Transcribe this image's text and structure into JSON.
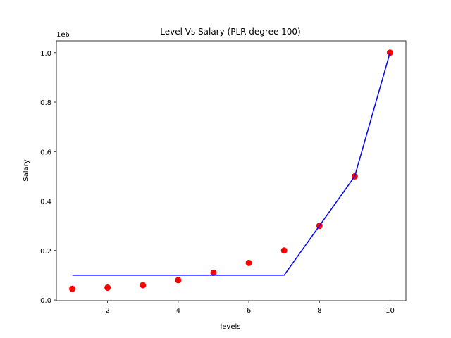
{
  "chart_data": {
    "type": "scatter",
    "title": "Level Vs Salary (PLR degree 100)",
    "xlabel": "levels",
    "ylabel": "Salary",
    "y_offset_label": "1e6",
    "xlim": [
      0.55,
      10.45
    ],
    "ylim": [
      -0.0028,
      1.0478
    ],
    "x_ticks": [
      2,
      4,
      6,
      8,
      10
    ],
    "x_tick_labels": [
      "2",
      "4",
      "6",
      "8",
      "10"
    ],
    "y_ticks": [
      0.0,
      0.2,
      0.4,
      0.6,
      0.8,
      1.0
    ],
    "y_tick_labels": [
      "0.0",
      "0.2",
      "0.4",
      "0.6",
      "0.8",
      "1.0"
    ],
    "grid": false,
    "series": [
      {
        "kind": "scatter",
        "color": "#ff0000",
        "x": [
          1,
          2,
          3,
          4,
          5,
          6,
          7,
          8,
          9,
          10
        ],
        "y": [
          0.045,
          0.05,
          0.06,
          0.08,
          0.11,
          0.15,
          0.2,
          0.3,
          0.5,
          1.0
        ]
      },
      {
        "kind": "line",
        "color": "#0000ff",
        "x": [
          1,
          2,
          3,
          4,
          5,
          6,
          7,
          8,
          9,
          10
        ],
        "y": [
          0.1,
          0.1,
          0.1,
          0.1,
          0.1,
          0.1,
          0.1,
          0.3,
          0.5,
          1.0
        ]
      }
    ]
  }
}
